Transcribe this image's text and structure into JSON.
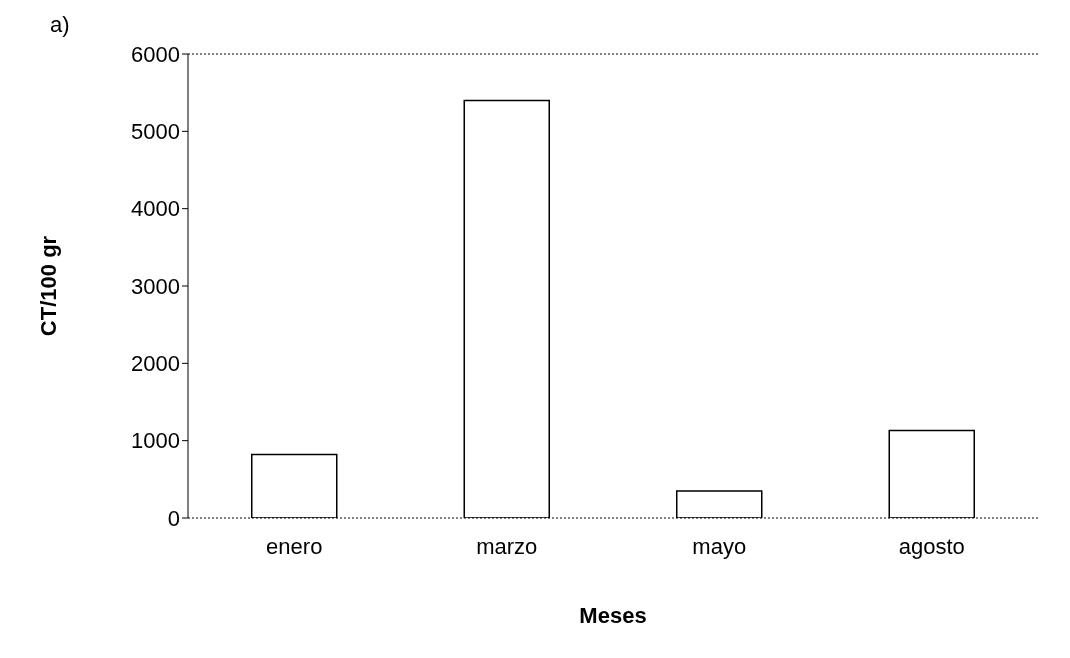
{
  "chart_data": {
    "type": "bar",
    "xlabel": "Meses",
    "ylabel": "CT/100 gr",
    "annotations": [
      "a)"
    ],
    "categories": [
      "enero",
      "marzo",
      "mayo",
      "agosto"
    ],
    "values": [
      820,
      5400,
      350,
      1130
    ],
    "color": "#ffffff",
    "ylim": [
      0,
      6000
    ],
    "yticks": [
      0,
      1000,
      2000,
      3000,
      4000,
      5000,
      6000
    ],
    "grid": false,
    "legend": false
  }
}
